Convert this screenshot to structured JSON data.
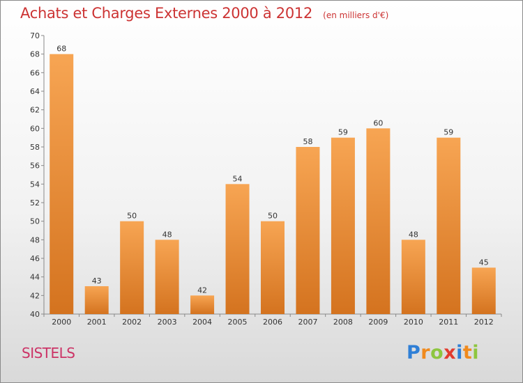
{
  "header": {
    "title": "Achats et Charges Externes 2000 à 2012",
    "unit": "(en milliers d'€)"
  },
  "footer": {
    "commune": "SISTELS",
    "logo": [
      "P",
      "r",
      "o",
      "x",
      "i",
      "t",
      "i"
    ]
  },
  "colors": {
    "bar_top": "#f7a553",
    "bar_bottom": "#d4731f",
    "title": "#cc3333",
    "commune": "#cc3366"
  },
  "chart_data": {
    "type": "bar",
    "categories": [
      "2000",
      "2001",
      "2002",
      "2003",
      "2004",
      "2005",
      "2006",
      "2007",
      "2008",
      "2009",
      "2010",
      "2011",
      "2012"
    ],
    "values": [
      68,
      43,
      50,
      48,
      42,
      54,
      50,
      58,
      59,
      60,
      48,
      59,
      45
    ],
    "data_labels": [
      "68",
      "43",
      "50",
      "48",
      "42",
      "54",
      "50",
      "58",
      "59",
      "60",
      "48",
      "59",
      "45"
    ],
    "ylim": [
      40,
      70
    ],
    "yticks": [
      40,
      42,
      44,
      46,
      48,
      50,
      52,
      54,
      56,
      58,
      60,
      62,
      64,
      66,
      68,
      70
    ],
    "grid": false,
    "legend": "none"
  }
}
